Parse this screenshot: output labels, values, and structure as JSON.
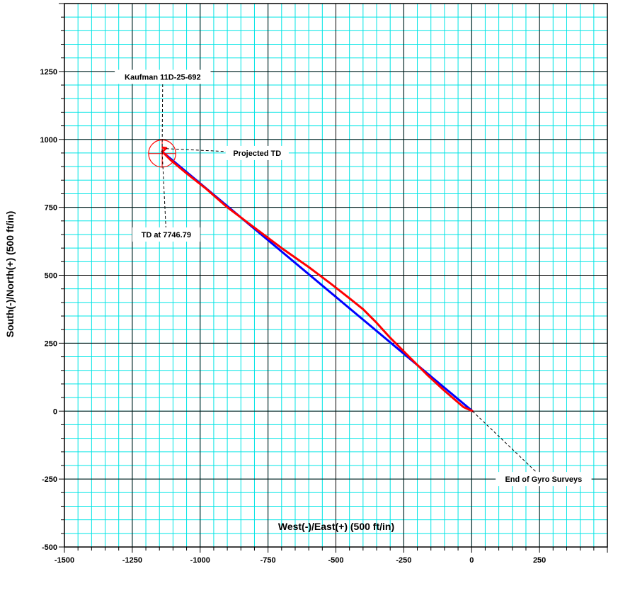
{
  "chart_data": {
    "type": "line",
    "title": "",
    "xlabel": "West(-)/East(+) (500 ft/in)",
    "ylabel": "South(-)/North(+) (500 ft/in)",
    "xlim": [
      -1500,
      500
    ],
    "ylim": [
      -500,
      1500
    ],
    "x_ticks": [
      -1500,
      -1250,
      -1000,
      -750,
      -500,
      -250,
      0,
      250
    ],
    "y_ticks": [
      -500,
      -250,
      0,
      250,
      500,
      750,
      1000,
      1250
    ],
    "x_tick_labels": [
      "-1500",
      "-1250",
      "-1000",
      "-750",
      "-500",
      "-250",
      "0",
      "250"
    ],
    "y_tick_labels": [
      "-500",
      "-250",
      "0",
      "250",
      "500",
      "750",
      "1000",
      "1250"
    ],
    "grid": true,
    "minor_grid_step": 50,
    "colors": {
      "minor_grid": "#00e5e5",
      "major_grid": "#000000",
      "plan": "#0000ff",
      "actual": "#ff0000"
    },
    "series": [
      {
        "color": "#0000ff",
        "x": [
          3,
          -1140
        ],
        "y": [
          0,
          955
        ]
      },
      {
        "color": "#ff0000",
        "x": [
          3,
          -30,
          -100,
          -160,
          -230,
          -260,
          -300,
          -350,
          -400,
          -450,
          -520,
          -600,
          -700,
          -780,
          -900,
          -980,
          -1050,
          -1110,
          -1140,
          -1130,
          -1125,
          -1138
        ],
        "y": [
          0,
          15,
          75,
          130,
          200,
          230,
          270,
          325,
          375,
          415,
          470,
          530,
          600,
          660,
          750,
          820,
          875,
          925,
          955,
          963,
          968,
          970
        ]
      }
    ],
    "target": {
      "x": -1140,
      "y": 948,
      "radius": 50,
      "color": "#ff0000"
    },
    "annotations": [
      {
        "text": "Kaufman  11D-25-692",
        "point": [
          -1140,
          955
        ],
        "label_at": [
          -1138,
          1230
        ]
      },
      {
        "text": "Projected TD",
        "point": [
          -1125,
          966
        ],
        "label_at": [
          -790,
          950
        ]
      },
      {
        "text": "TD at 7746.79",
        "point": [
          -1140,
          955
        ],
        "label_at": [
          -1125,
          650
        ]
      },
      {
        "text": "End of Gyro Surveys",
        "point": [
          3,
          0
        ],
        "label_at": [
          265,
          -250
        ]
      }
    ]
  }
}
